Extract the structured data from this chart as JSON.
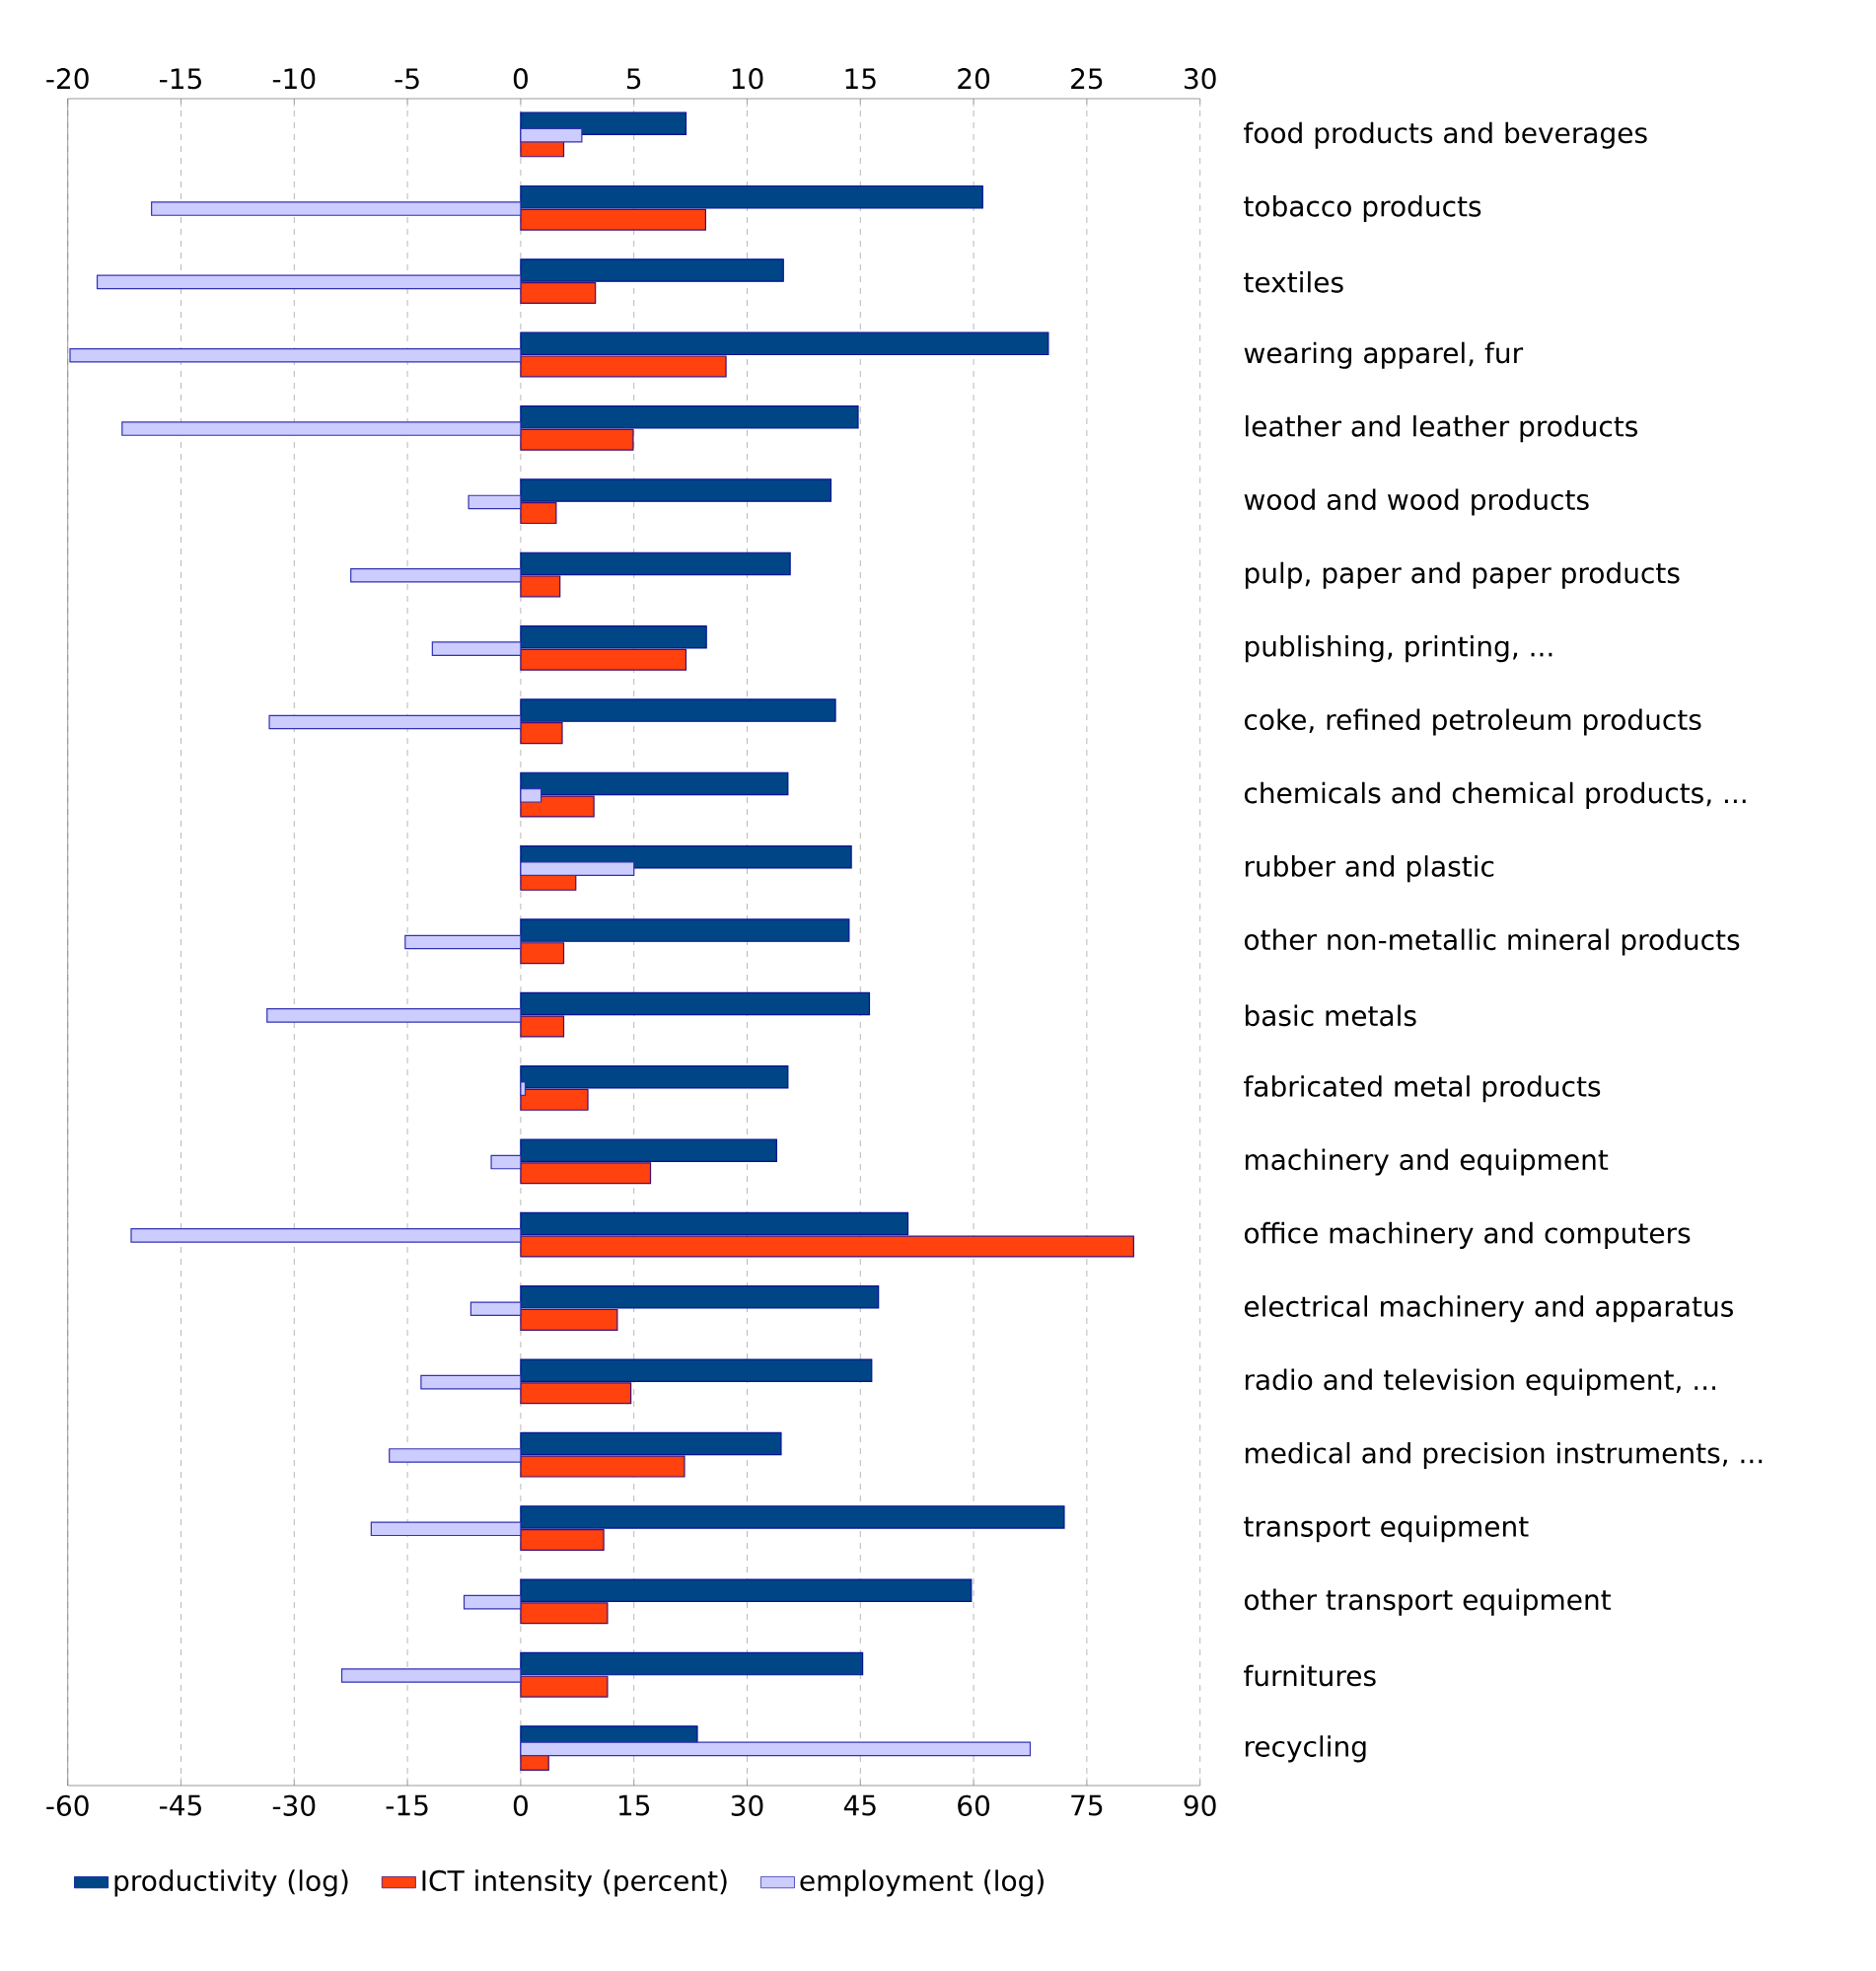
{
  "chart_data": {
    "type": "bar",
    "orientation": "horizontal",
    "categories": [
      "food products and beverages",
      "tobacco products",
      "textiles",
      "wearing apparel, fur",
      "leather and leather products",
      "wood and wood products",
      "pulp, paper and paper products",
      "publishing, printing, ...",
      "coke, refined petroleum products",
      "chemicals and chemical products, ...",
      "rubber and plastic",
      "other non-metallic mineral products",
      "basic metals",
      "fabricated metal products",
      "machinery and equipment",
      "office machinery and computers",
      "electrical machinery and apparatus",
      "radio and television equipment, ...",
      "medical and precision instruments, ...",
      "transport equipment",
      "other transport equipment",
      "furnitures",
      "recycling"
    ],
    "series": [
      {
        "name": "productivity (log)",
        "color": "#004586",
        "axis": "x2",
        "values": [
          7.3,
          20.4,
          11.6,
          23.3,
          14.9,
          13.7,
          11.9,
          8.2,
          13.9,
          11.8,
          14.6,
          14.5,
          15.4,
          11.8,
          11.3,
          17.1,
          15.8,
          15.5,
          11.5,
          24.0,
          19.9,
          15.1,
          7.8
        ]
      },
      {
        "name": "ICT intensity (percent)",
        "color": "#ff420e",
        "values": [
          5.7,
          24.5,
          9.9,
          27.2,
          14.9,
          4.7,
          5.2,
          21.9,
          5.5,
          9.7,
          7.3,
          5.7,
          5.7,
          8.9,
          17.2,
          81.2,
          12.8,
          14.6,
          21.7,
          11.0,
          11.5,
          11.5,
          3.7
        ]
      },
      {
        "name": "employment (log)",
        "color": "#ccccff",
        "axis": "x2",
        "values": [
          2.7,
          -16.3,
          -18.7,
          -19.9,
          -17.6,
          -2.3,
          -7.5,
          -3.9,
          -11.1,
          0.9,
          5.0,
          -5.1,
          -11.2,
          0.2,
          -1.3,
          -17.2,
          -2.2,
          -4.4,
          -5.8,
          -6.6,
          -2.5,
          -7.9,
          22.5
        ]
      }
    ],
    "xlim": [
      -60,
      90
    ],
    "xticks": [
      -60,
      -45,
      -30,
      -15,
      0,
      15,
      30,
      45,
      60,
      75,
      90
    ],
    "x2lim": [
      -20,
      30
    ],
    "x2ticks": [
      -20,
      -15,
      -10,
      -5,
      0,
      5,
      10,
      15,
      20,
      25,
      30
    ],
    "grid": true,
    "legend": "bottom"
  }
}
